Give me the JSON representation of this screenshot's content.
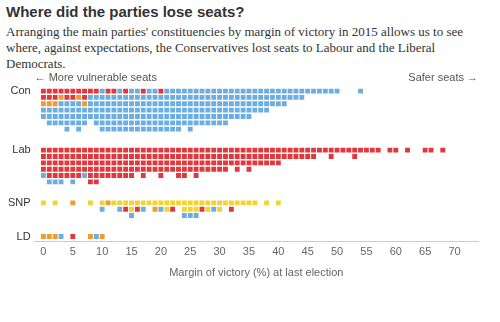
{
  "chart_data": {
    "type": "waffle",
    "title": "Where did the parties lose seats?",
    "subtitle": "Arranging the main parties' constituencies by margin of victory in 2015 allows us to see where, against expectations, the Conservatives lost seats to Labour and the Liberal Democrats.",
    "x_label": "Margin of victory (%) at last election",
    "annotations": [
      "← More vulnerable seats",
      "Safer seats →"
    ],
    "xlim": [
      -1.5,
      74
    ],
    "xticks": [
      0,
      5,
      10,
      15,
      20,
      25,
      30,
      35,
      40,
      45,
      50,
      55,
      60,
      65,
      70
    ],
    "grid": false,
    "x": [
      0,
      1,
      2,
      3,
      4,
      5,
      6,
      7,
      8,
      9,
      10,
      11,
      12,
      13,
      14,
      15,
      16,
      17,
      18,
      19,
      20,
      21,
      22,
      23,
      24,
      25,
      26,
      27,
      28,
      29,
      30,
      31,
      32,
      33,
      34,
      35,
      36,
      37,
      38,
      39,
      40,
      41,
      42,
      43,
      44,
      45,
      46,
      47,
      48,
      49,
      50,
      51,
      52,
      53,
      54,
      55,
      56,
      57,
      58,
      59,
      60,
      61,
      62,
      63,
      64,
      65,
      66,
      67,
      68,
      69
    ],
    "rows": [
      {
        "label": "Con",
        "series": [
          {
            "color": "#e0383d",
            "values": [
              2,
              2,
              2,
              1,
              2,
              2,
              1,
              2,
              1,
              1,
              0,
              1,
              1,
              0,
              1,
              0,
              0,
              1,
              0,
              0,
              1,
              0,
              0,
              0,
              0,
              0,
              0,
              0,
              0,
              0,
              0,
              0,
              0,
              0,
              0,
              0,
              0,
              0,
              0,
              0,
              0,
              0,
              0,
              0,
              0,
              0,
              0,
              0,
              0,
              0,
              0,
              0,
              0,
              0,
              0,
              0,
              0,
              0,
              0,
              0,
              0,
              0,
              0,
              0,
              0,
              0,
              0,
              0,
              0,
              0
            ]
          },
          {
            "color": "#f39a29",
            "values": [
              1,
              1,
              1,
              1,
              0,
              0,
              1,
              1,
              0,
              0,
              0,
              0,
              0,
              0,
              0,
              0,
              0,
              0,
              0,
              0,
              0,
              0,
              0,
              0,
              0,
              0,
              0,
              0,
              0,
              0,
              0,
              0,
              0,
              0,
              0,
              0,
              0,
              0,
              0,
              0,
              0,
              0,
              0,
              0,
              0,
              0,
              0,
              0,
              0,
              0,
              0,
              0,
              0,
              0,
              0,
              0,
              0,
              0,
              0,
              0,
              0,
              0,
              0,
              0,
              0,
              0,
              0,
              0,
              0,
              0
            ]
          },
          {
            "color": "#6daee2",
            "values": [
              2,
              3,
              3,
              4,
              5,
              4,
              5,
              3,
              4,
              5,
              7,
              6,
              6,
              7,
              6,
              7,
              7,
              6,
              7,
              7,
              6,
              7,
              7,
              7,
              6,
              7,
              6,
              6,
              6,
              6,
              6,
              6,
              5,
              5,
              5,
              5,
              4,
              4,
              4,
              3,
              3,
              3,
              2,
              2,
              2,
              1,
              1,
              1,
              1,
              1,
              1,
              0,
              0,
              0,
              1,
              0,
              0,
              0,
              0,
              0,
              0,
              0,
              0,
              0,
              0,
              0,
              0,
              0,
              0,
              0
            ]
          }
        ]
      },
      {
        "label": "Lab",
        "series": [
          {
            "color": "#e0383d",
            "values": [
              4,
              5,
              5,
              5,
              5,
              5,
              5,
              4,
              6,
              6,
              5,
              5,
              5,
              5,
              5,
              5,
              4,
              5,
              4,
              4,
              5,
              4,
              4,
              5,
              5,
              4,
              5,
              4,
              4,
              4,
              4,
              4,
              3,
              4,
              3,
              4,
              3,
              3,
              3,
              3,
              3,
              2,
              2,
              2,
              2,
              2,
              2,
              1,
              1,
              2,
              1,
              1,
              1,
              2,
              1,
              1,
              1,
              1,
              0,
              1,
              1,
              0,
              1,
              0,
              0,
              1,
              1,
              0,
              1,
              0
            ]
          },
          {
            "color": "#6daee2",
            "values": [
              1,
              1,
              1,
              1,
              0,
              1,
              0,
              1,
              0,
              0,
              0,
              0,
              0,
              0,
              0,
              0,
              0,
              0,
              0,
              0,
              0,
              0,
              0,
              0,
              0,
              0,
              0,
              0,
              0,
              0,
              0,
              0,
              0,
              0,
              0,
              0,
              0,
              0,
              0,
              0,
              0,
              0,
              0,
              0,
              0,
              0,
              0,
              0,
              0,
              0,
              0,
              0,
              0,
              0,
              0,
              0,
              0,
              0,
              0,
              0,
              0,
              0,
              0,
              0,
              0,
              0,
              0,
              0,
              0,
              0
            ]
          }
        ]
      },
      {
        "label": "SNP",
        "series": [
          {
            "color": "#f1d331",
            "values": [
              1,
              0,
              1,
              0,
              0,
              0,
              0,
              0,
              1,
              0,
              1,
              0,
              1,
              1,
              1,
              2,
              1,
              1,
              1,
              1,
              1,
              2,
              1,
              1,
              2,
              2,
              2,
              1,
              2,
              1,
              2,
              1,
              1,
              1,
              1,
              1,
              1,
              0,
              1,
              0,
              1,
              0,
              0,
              0,
              0,
              0,
              0,
              0,
              0,
              0,
              0,
              0,
              0,
              0,
              0,
              0,
              0,
              0,
              0,
              0,
              0,
              0,
              0,
              0,
              0,
              0,
              0,
              0,
              0,
              0
            ]
          },
          {
            "color": "#6daee2",
            "values": [
              0,
              0,
              0,
              0,
              0,
              0,
              0,
              0,
              0,
              0,
              1,
              0,
              0,
              1,
              0,
              1,
              0,
              1,
              0,
              0,
              1,
              0,
              0,
              0,
              1,
              1,
              1,
              0,
              0,
              1,
              0,
              0,
              0,
              0,
              0,
              0,
              0,
              0,
              0,
              0,
              0,
              0,
              0,
              0,
              0,
              0,
              0,
              0,
              0,
              0,
              0,
              0,
              0,
              0,
              0,
              0,
              0,
              0,
              0,
              0,
              0,
              0,
              0,
              0,
              0,
              0,
              0,
              0,
              0,
              0
            ]
          },
          {
            "color": "#e0383d",
            "values": [
              0,
              0,
              0,
              0,
              0,
              0,
              0,
              0,
              0,
              0,
              0,
              0,
              0,
              0,
              1,
              0,
              1,
              0,
              0,
              0,
              0,
              0,
              1,
              0,
              0,
              0,
              0,
              1,
              0,
              0,
              0,
              0,
              1,
              0,
              0,
              0,
              0,
              0,
              0,
              0,
              0,
              0,
              0,
              0,
              0,
              0,
              0,
              0,
              0,
              0,
              0,
              0,
              0,
              0,
              0,
              0,
              0,
              0,
              0,
              0,
              0,
              0,
              0,
              0,
              0,
              0,
              0,
              0,
              0,
              0
            ]
          },
          {
            "color": "#f39a29",
            "values": [
              0,
              0,
              0,
              0,
              0,
              1,
              0,
              0,
              0,
              0,
              0,
              1,
              0,
              0,
              0,
              0,
              0,
              0,
              0,
              1,
              0,
              0,
              0,
              0,
              0,
              0,
              0,
              0,
              0,
              0,
              0,
              0,
              0,
              0,
              0,
              0,
              0,
              0,
              0,
              0,
              0,
              0,
              0,
              0,
              0,
              0,
              0,
              0,
              0,
              0,
              0,
              0,
              0,
              0,
              0,
              0,
              0,
              0,
              0,
              0,
              0,
              0,
              0,
              0,
              0,
              0,
              0,
              0,
              0,
              0
            ]
          }
        ]
      },
      {
        "label": "LD",
        "series": [
          {
            "color": "#f39a29",
            "values": [
              1,
              1,
              1,
              0,
              0,
              0,
              0,
              0,
              1,
              0,
              1,
              0,
              0,
              0,
              0,
              0,
              0,
              0,
              0,
              0,
              0,
              0,
              0,
              0,
              0,
              0,
              0,
              0,
              0,
              0,
              0,
              0,
              0,
              0,
              0,
              0,
              0,
              0,
              0,
              0,
              0,
              0,
              0,
              0,
              0,
              0,
              0,
              0,
              0,
              0,
              0,
              0,
              0,
              0,
              0,
              0,
              0,
              0,
              0,
              0,
              0,
              0,
              0,
              0,
              0,
              0,
              0,
              0,
              0,
              0
            ]
          },
          {
            "color": "#6daee2",
            "values": [
              0,
              0,
              0,
              1,
              0,
              0,
              0,
              0,
              0,
              1,
              0,
              0,
              0,
              0,
              0,
              0,
              0,
              0,
              0,
              0,
              0,
              0,
              0,
              0,
              0,
              0,
              0,
              0,
              0,
              0,
              0,
              0,
              0,
              0,
              0,
              0,
              0,
              0,
              0,
              0,
              0,
              0,
              0,
              0,
              0,
              0,
              0,
              0,
              0,
              0,
              0,
              0,
              0,
              0,
              0,
              0,
              0,
              0,
              0,
              0,
              0,
              0,
              0,
              0,
              0,
              0,
              0,
              0,
              0,
              0
            ]
          },
          {
            "color": "#e0383d",
            "values": [
              0,
              0,
              0,
              0,
              0,
              1,
              0,
              0,
              0,
              0,
              0,
              0,
              0,
              0,
              0,
              0,
              0,
              0,
              0,
              0,
              0,
              0,
              0,
              0,
              0,
              0,
              0,
              0,
              0,
              0,
              0,
              0,
              0,
              0,
              0,
              0,
              0,
              0,
              0,
              0,
              0,
              0,
              0,
              0,
              0,
              0,
              0,
              0,
              0,
              0,
              0,
              0,
              0,
              0,
              0,
              0,
              0,
              0,
              0,
              0,
              0,
              0,
              0,
              0,
              0,
              0,
              0,
              0,
              0,
              0
            ]
          }
        ]
      }
    ]
  }
}
